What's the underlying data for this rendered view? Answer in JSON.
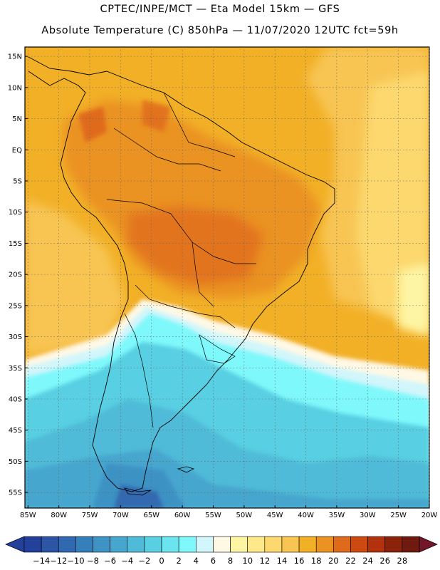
{
  "header": {
    "line1": "CPTEC/INPE/MCT —  Eta Model 15km — GFS",
    "line2": "Absolute Temperature (C) 850hPa — 11/07/2020 12UTC fct=59h"
  },
  "map": {
    "lat_labels": [
      "15N",
      "10N",
      "5N",
      "EQ",
      "5S",
      "10S",
      "15S",
      "20S",
      "25S",
      "30S",
      "35S",
      "40S",
      "45S",
      "50S",
      "55S"
    ],
    "lat_values": [
      15,
      10,
      5,
      0,
      -5,
      -10,
      -15,
      -20,
      -25,
      -30,
      -35,
      -40,
      -45,
      -50,
      -55
    ],
    "lon_labels": [
      "85W",
      "80W",
      "75W",
      "70W",
      "65W",
      "60W",
      "55W",
      "50W",
      "45W",
      "40W",
      "35W",
      "30W",
      "25W",
      "20W"
    ],
    "lon_values": [
      -85,
      -80,
      -75,
      -70,
      -65,
      -60,
      -55,
      -50,
      -45,
      -40,
      -35,
      -30,
      -25,
      -20
    ],
    "lon_range": [
      -85.5,
      -20
    ],
    "lat_range": [
      -57.5,
      16.5
    ],
    "gridlines": "dotted"
  },
  "colorbar": {
    "labels": [
      "-14",
      "-12",
      "-10",
      "-8",
      "-6",
      "-4",
      "-2",
      "0",
      "2",
      "4",
      "6",
      "8",
      "10",
      "12",
      "14",
      "16",
      "18",
      "20",
      "22",
      "24",
      "26",
      "28"
    ],
    "colors": [
      "#23409b",
      "#2c55a6",
      "#3169b1",
      "#357fbb",
      "#3e92c4",
      "#47a6ce",
      "#50bbd8",
      "#59cfe2",
      "#6ae4ee",
      "#7ff8fb",
      "#d1f6fb",
      "#fff8e5",
      "#fef5a4",
      "#fde98a",
      "#fcd86e",
      "#f8c552",
      "#f2b027",
      "#ea9222",
      "#e06a1b",
      "#cc4a12",
      "#b1320d",
      "#8b220a",
      "#6e1a0e"
    ],
    "under_color": "#23409b",
    "over_color": "#73162a"
  }
}
